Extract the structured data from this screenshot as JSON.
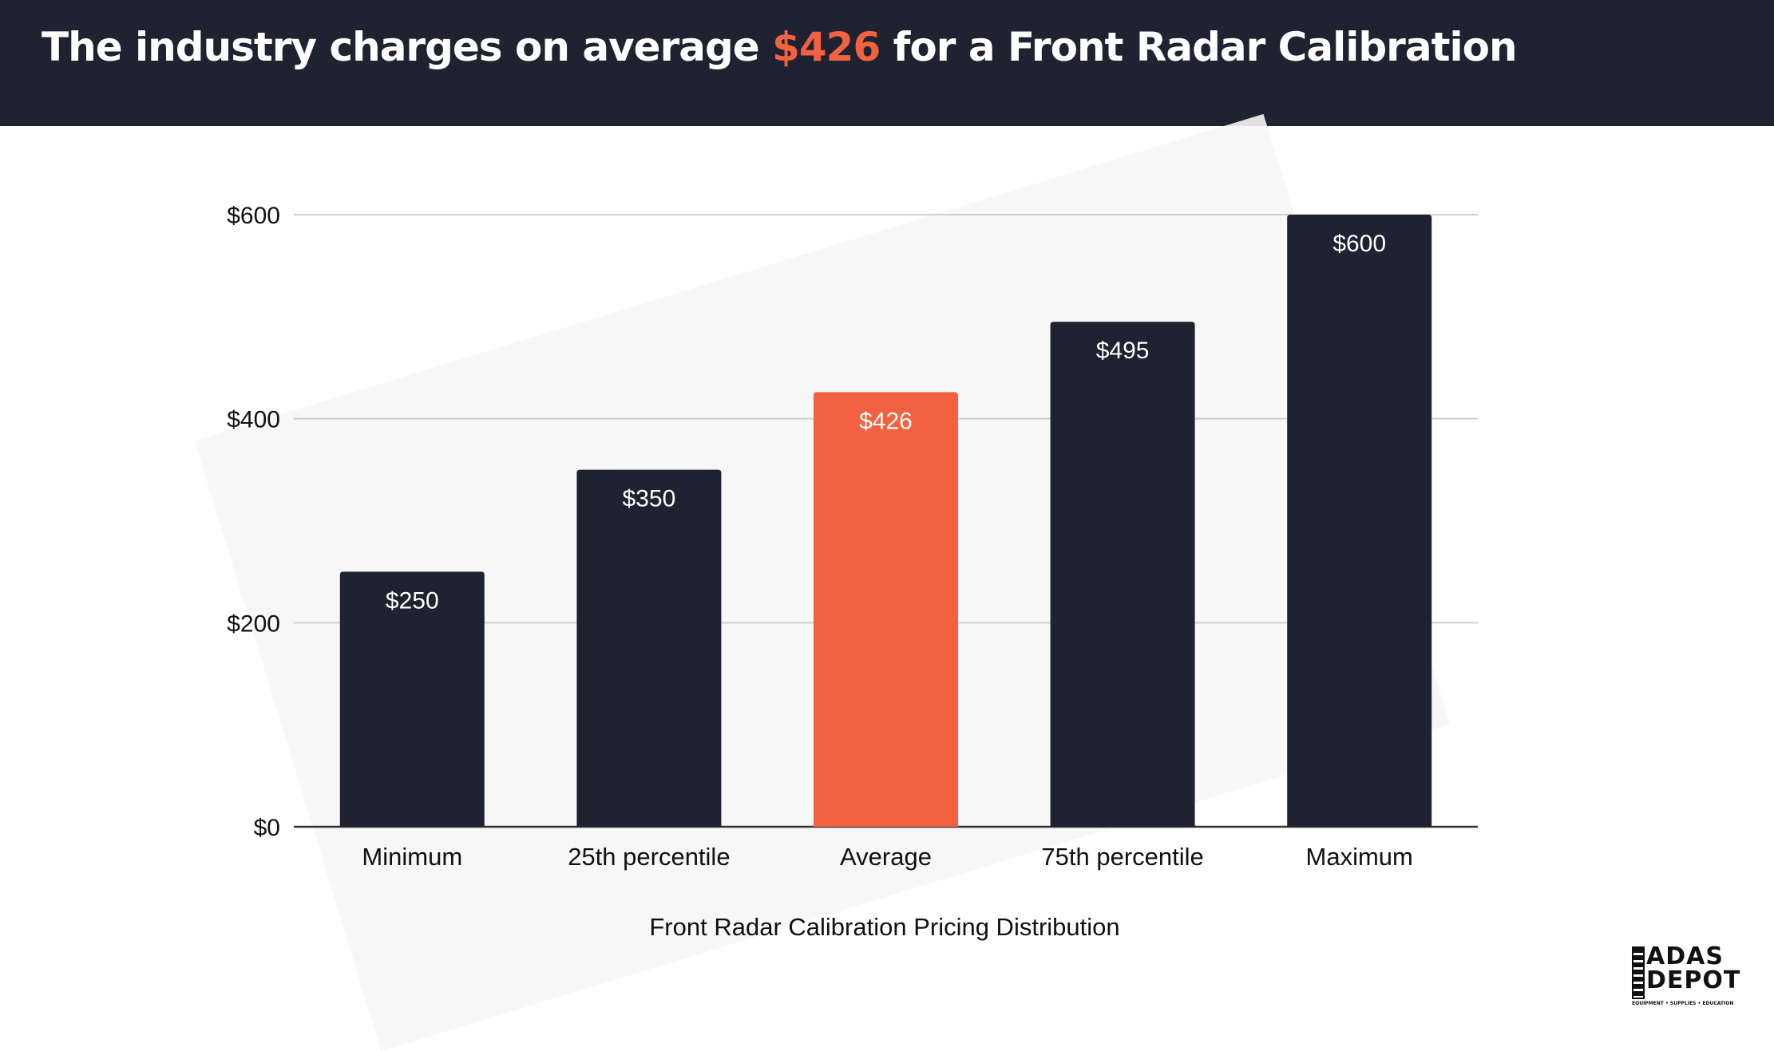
{
  "header": {
    "title_prefix": "The industry charges on average ",
    "title_highlight": "$426",
    "title_suffix": " for a Front Radar Calibration"
  },
  "colors": {
    "header_bg": "#1f2230",
    "bar": "#1f2230",
    "highlight": "#f26241"
  },
  "chart_data": {
    "type": "bar",
    "categories": [
      "Minimum",
      "25th percentile",
      "Average",
      "75th percentile",
      "Maximum"
    ],
    "values": [
      250,
      350,
      426,
      495,
      600
    ],
    "data_labels": [
      "$250",
      "$350",
      "$426",
      "$495",
      "$600"
    ],
    "highlight_index": 2,
    "xlabel": "Front Radar Calibration Pricing Distribution",
    "ylabel": "",
    "ylim": [
      0,
      600
    ],
    "yticks": [
      0,
      200,
      400,
      600
    ],
    "ytick_labels": [
      "$0",
      "$200",
      "$400",
      "$600"
    ],
    "grid": true,
    "legend": "none"
  },
  "logo": {
    "line1": "ADAS",
    "line2": "DEPOT",
    "tagline": "EQUIPMENT • SUPPLIES • EDUCATION"
  }
}
